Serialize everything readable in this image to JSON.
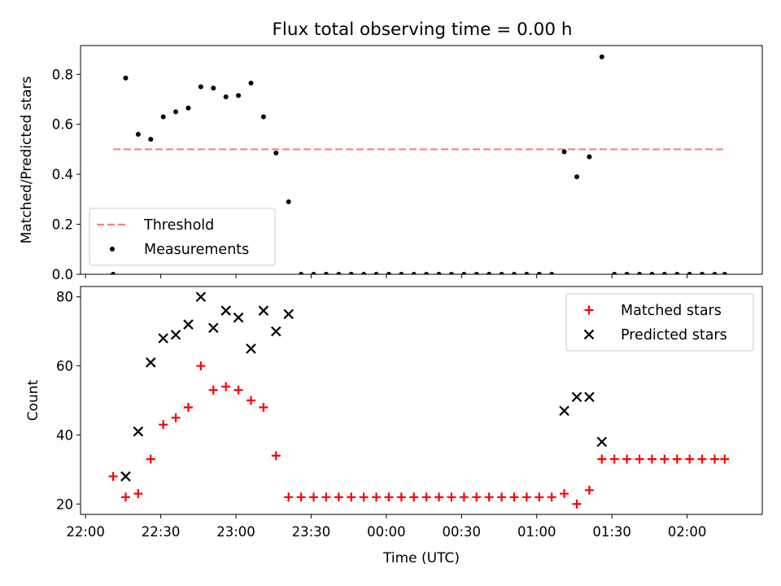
{
  "title": "Flux total observing time = 0.00 h",
  "chart_data": [
    {
      "type": "scatter",
      "ylabel": "Matched/Predicted stars",
      "xlabel": "",
      "ylim": [
        0,
        0.915
      ],
      "xlim": [
        "21:58",
        "02:30"
      ],
      "yticks": [
        0.0,
        0.2,
        0.4,
        0.6,
        0.8
      ],
      "ytick_labels": [
        "0.0",
        "0.2",
        "0.4",
        "0.6",
        "0.8"
      ],
      "xticks": [
        "22:00",
        "22:30",
        "23:00",
        "23:30",
        "00:00",
        "00:30",
        "01:00",
        "01:30",
        "02:00"
      ],
      "legend_position": "lower left",
      "threshold": {
        "name": "Threshold",
        "value": 0.5,
        "x_start": "22:11",
        "x_end": "02:15",
        "color": "#ff7f7f",
        "style": "dashed"
      },
      "series": [
        {
          "name": "Measurements",
          "color": "#000000",
          "marker": "dot",
          "x": [
            "22:11",
            "22:16",
            "22:21",
            "22:26",
            "22:31",
            "22:36",
            "22:41",
            "22:46",
            "22:51",
            "22:56",
            "23:01",
            "23:06",
            "23:11",
            "23:16",
            "23:21",
            "23:26",
            "23:31",
            "23:36",
            "23:41",
            "23:46",
            "23:51",
            "23:56",
            "00:01",
            "00:06",
            "00:11",
            "00:16",
            "00:21",
            "00:26",
            "00:31",
            "00:36",
            "00:41",
            "00:46",
            "00:51",
            "00:56",
            "01:01",
            "01:06",
            "01:11",
            "01:16",
            "01:21",
            "01:26",
            "01:31",
            "01:36",
            "01:41",
            "01:46",
            "01:51",
            "01:56",
            "02:01",
            "02:06",
            "02:11",
            "02:15"
          ],
          "y": [
            0.0,
            0.785,
            0.56,
            0.54,
            0.63,
            0.65,
            0.665,
            0.75,
            0.745,
            0.71,
            0.715,
            0.765,
            0.63,
            0.485,
            0.29,
            0.0,
            0.0,
            0.0,
            0.0,
            0.0,
            0.0,
            0.0,
            0.0,
            0.0,
            0.0,
            0.0,
            0.0,
            0.0,
            0.0,
            0.0,
            0.0,
            0.0,
            0.0,
            0.0,
            0.0,
            0.0,
            0.49,
            0.39,
            0.47,
            0.87,
            0.0,
            0.0,
            0.0,
            0.0,
            0.0,
            0.0,
            0.0,
            0.0,
            0.0,
            0.0
          ]
        }
      ]
    },
    {
      "type": "scatter",
      "ylabel": "Count",
      "xlabel": "Time (UTC)",
      "ylim": [
        17,
        83
      ],
      "xlim": [
        "21:58",
        "02:30"
      ],
      "yticks": [
        20,
        40,
        60,
        80
      ],
      "xticks": [
        "22:00",
        "22:30",
        "23:00",
        "23:30",
        "00:00",
        "00:30",
        "01:00",
        "01:30",
        "02:00"
      ],
      "legend_position": "upper right",
      "series": [
        {
          "name": "Matched stars",
          "color": "#ff0000",
          "marker": "plus",
          "x": [
            "22:11",
            "22:16",
            "22:21",
            "22:26",
            "22:31",
            "22:36",
            "22:41",
            "22:46",
            "22:51",
            "22:56",
            "23:01",
            "23:06",
            "23:11",
            "23:16",
            "23:21",
            "23:26",
            "23:31",
            "23:36",
            "23:41",
            "23:46",
            "23:51",
            "23:56",
            "00:01",
            "00:06",
            "00:11",
            "00:16",
            "00:21",
            "00:26",
            "00:31",
            "00:36",
            "00:41",
            "00:46",
            "00:51",
            "00:56",
            "01:01",
            "01:06",
            "01:11",
            "01:16",
            "01:21",
            "01:26",
            "01:31",
            "01:36",
            "01:41",
            "01:46",
            "01:51",
            "01:56",
            "02:01",
            "02:06",
            "02:11",
            "02:15"
          ],
          "y": [
            28,
            22,
            23,
            33,
            43,
            45,
            48,
            60,
            53,
            54,
            53,
            50,
            48,
            34,
            22,
            22,
            22,
            22,
            22,
            22,
            22,
            22,
            22,
            22,
            22,
            22,
            22,
            22,
            22,
            22,
            22,
            22,
            22,
            22,
            22,
            22,
            23,
            20,
            24,
            33,
            33,
            33,
            33,
            33,
            33,
            33,
            33,
            33,
            33,
            33
          ]
        },
        {
          "name": "Predicted stars",
          "color": "#000000",
          "marker": "x",
          "x": [
            "22:16",
            "22:21",
            "22:26",
            "22:31",
            "22:36",
            "22:41",
            "22:46",
            "22:51",
            "22:56",
            "23:01",
            "23:06",
            "23:11",
            "23:16",
            "23:21",
            "01:11",
            "01:16",
            "01:21",
            "01:26"
          ],
          "y": [
            28,
            41,
            61,
            68,
            69,
            72,
            80,
            71,
            76,
            74,
            65,
            76,
            70,
            75,
            47,
            51,
            51,
            38
          ]
        }
      ]
    }
  ]
}
